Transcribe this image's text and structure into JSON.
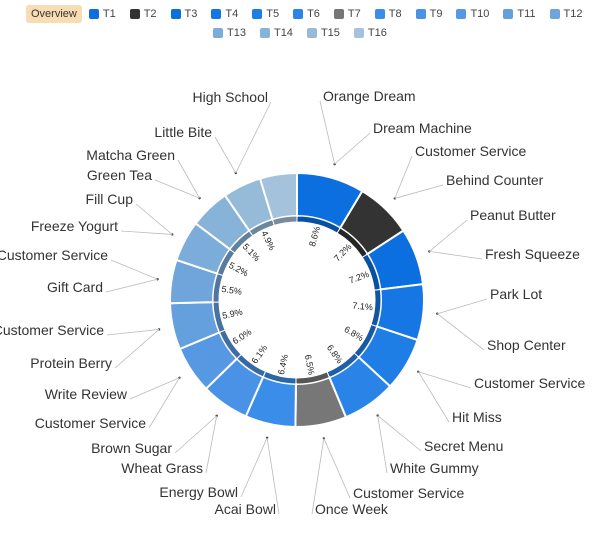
{
  "legend": {
    "overview_label": "Overview",
    "items": [
      {
        "label": "T1",
        "color": "#0b6fe0"
      },
      {
        "label": "T2",
        "color": "#333333"
      },
      {
        "label": "T3",
        "color": "#0b6fe0"
      },
      {
        "label": "T4",
        "color": "#1677e4"
      },
      {
        "label": "T5",
        "color": "#1f7de6"
      },
      {
        "label": "T6",
        "color": "#2a84e8"
      },
      {
        "label": "T7",
        "color": "#777777"
      },
      {
        "label": "T8",
        "color": "#3a8de9"
      },
      {
        "label": "T9",
        "color": "#4a92e5"
      },
      {
        "label": "T10",
        "color": "#5798e2"
      },
      {
        "label": "T11",
        "color": "#649fde"
      },
      {
        "label": "T12",
        "color": "#70a5dc"
      },
      {
        "label": "T13",
        "color": "#7cacd9"
      },
      {
        "label": "T14",
        "color": "#88b3d8"
      },
      {
        "label": "T15",
        "color": "#96bbd9"
      },
      {
        "label": "T16",
        "color": "#a4c2dc"
      }
    ]
  },
  "chart_data": {
    "type": "pie",
    "variant": "donut",
    "title": "",
    "slices": [
      {
        "series": "T1",
        "value": 8.6,
        "label": "8.6%",
        "color": "#0b6fe0",
        "outer_labels": [
          "Orange Dream",
          "Dream Machine"
        ]
      },
      {
        "series": "T2",
        "value": 7.2,
        "label": "7.2%",
        "color": "#333333",
        "outer_labels": [
          "Customer Service",
          "Behind Counter"
        ]
      },
      {
        "series": "T3",
        "value": 7.2,
        "label": "7.2%",
        "color": "#0b6fe0",
        "outer_labels": [
          "Peanut Butter",
          "Fresh Squeeze"
        ]
      },
      {
        "series": "T4",
        "value": 7.1,
        "label": "7.1%",
        "color": "#1677e4",
        "outer_labels": [
          "Park Lot",
          "Shop Center"
        ]
      },
      {
        "series": "T5",
        "value": 6.8,
        "label": "6.8%",
        "color": "#1f7de6",
        "outer_labels": [
          "Customer Service",
          "Hit Miss"
        ]
      },
      {
        "series": "T6",
        "value": 6.8,
        "label": "6.8%",
        "color": "#2a84e8",
        "outer_labels": [
          "Secret Menu",
          "White Gummy"
        ]
      },
      {
        "series": "T7",
        "value": 6.5,
        "label": "6.5%",
        "color": "#777777",
        "outer_labels": [
          "Customer Service",
          "Once Week"
        ]
      },
      {
        "series": "T8",
        "value": 6.4,
        "label": "6.4%",
        "color": "#3a8de9",
        "outer_labels": [
          "Acai Bowl",
          "Energy Bowl"
        ]
      },
      {
        "series": "T9",
        "value": 6.1,
        "label": "6.1%",
        "color": "#4a92e5",
        "outer_labels": [
          "Wheat Grass",
          "Brown Sugar"
        ]
      },
      {
        "series": "T10",
        "value": 6.0,
        "label": "6.0%",
        "color": "#5798e2",
        "outer_labels": [
          "Customer Service",
          "Write Review"
        ]
      },
      {
        "series": "T11",
        "value": 5.9,
        "label": "5.9%",
        "color": "#649fde",
        "outer_labels": [
          "Protein Berry",
          "Customer Service"
        ]
      },
      {
        "series": "T12",
        "value": 5.5,
        "label": "5.5%",
        "color": "#70a5dc",
        "outer_labels": [
          "Gift Card",
          "Customer Service"
        ]
      },
      {
        "series": "T13",
        "value": 5.2,
        "label": "5.2%",
        "color": "#7cacd9",
        "outer_labels": [
          "Freeze Yogurt",
          "Fill Cup"
        ]
      },
      {
        "series": "T14",
        "value": 5.1,
        "label": "5.1%",
        "color": "#88b3d8",
        "outer_labels": [
          "Green Tea",
          "Matcha Green"
        ]
      },
      {
        "series": "T15",
        "value": 4.9,
        "label": "4.9%",
        "color": "#96bbd9",
        "outer_labels": [
          "Little Bite",
          "High School"
        ]
      },
      {
        "series": "T16",
        "value": 4.7,
        "label": "",
        "color": "#a4c2dc",
        "outer_labels": []
      }
    ]
  }
}
